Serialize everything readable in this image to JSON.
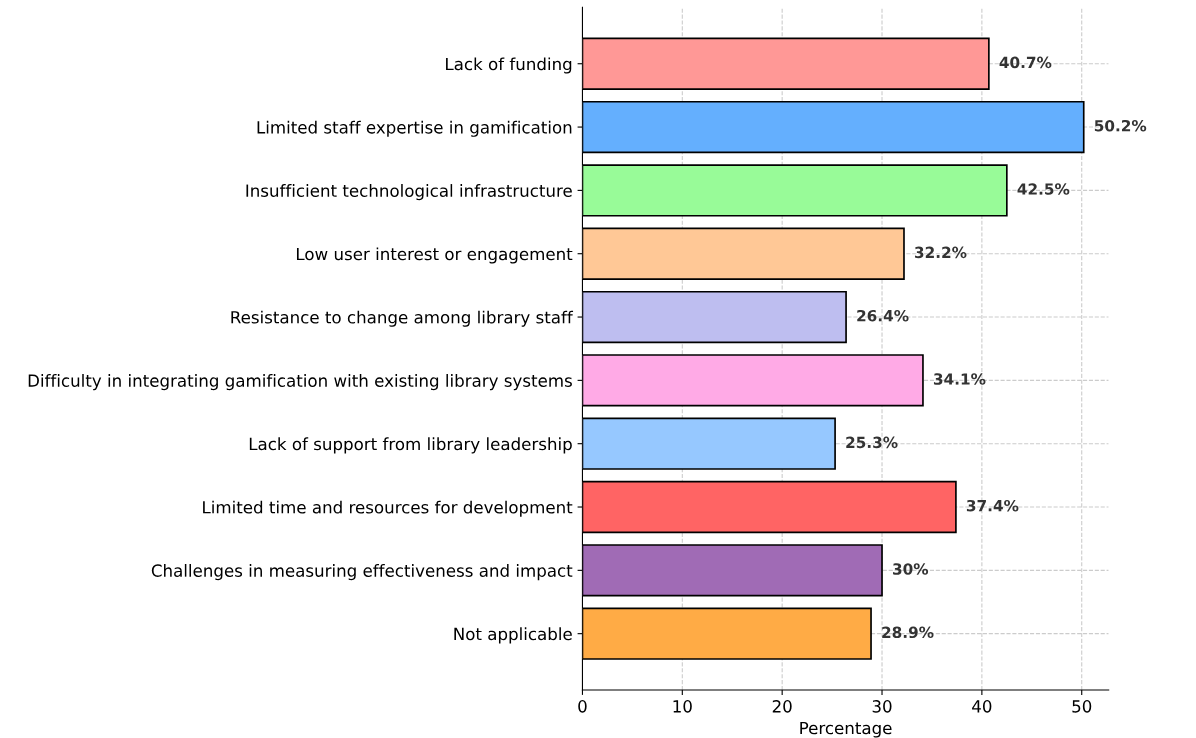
{
  "chart_data": {
    "type": "bar",
    "orientation": "horizontal",
    "xlabel": "Percentage",
    "categories": [
      "Lack of funding",
      "Limited staff expertise in gamification",
      "Insufficient technological infrastructure",
      "Low user interest or engagement",
      "Resistance to change among library staff",
      "Difficulty in integrating gamification with existing library systems",
      "Lack of support from library leadership",
      "Limited time and resources for development",
      "Challenges in measuring effectiveness and impact",
      "Not applicable"
    ],
    "values": [
      40.7,
      50.2,
      42.5,
      32.2,
      26.4,
      34.1,
      25.3,
      37.4,
      30,
      28.9
    ],
    "value_labels": [
      "40.7%",
      "50.2%",
      "42.5%",
      "32.2%",
      "26.4%",
      "34.1%",
      "25.3%",
      "37.4%",
      "30%",
      "28.9%"
    ],
    "colors": [
      "#ff9896",
      "#64affe",
      "#98fb98",
      "#ffc896",
      "#bebef0",
      "#ffaae6",
      "#96c8ff",
      "#ff6464",
      "#a06bb5",
      "#ffab45"
    ],
    "xlim": [
      0,
      52.7
    ],
    "xticks": [
      0,
      10,
      20,
      30,
      40,
      50
    ],
    "grid": true
  }
}
